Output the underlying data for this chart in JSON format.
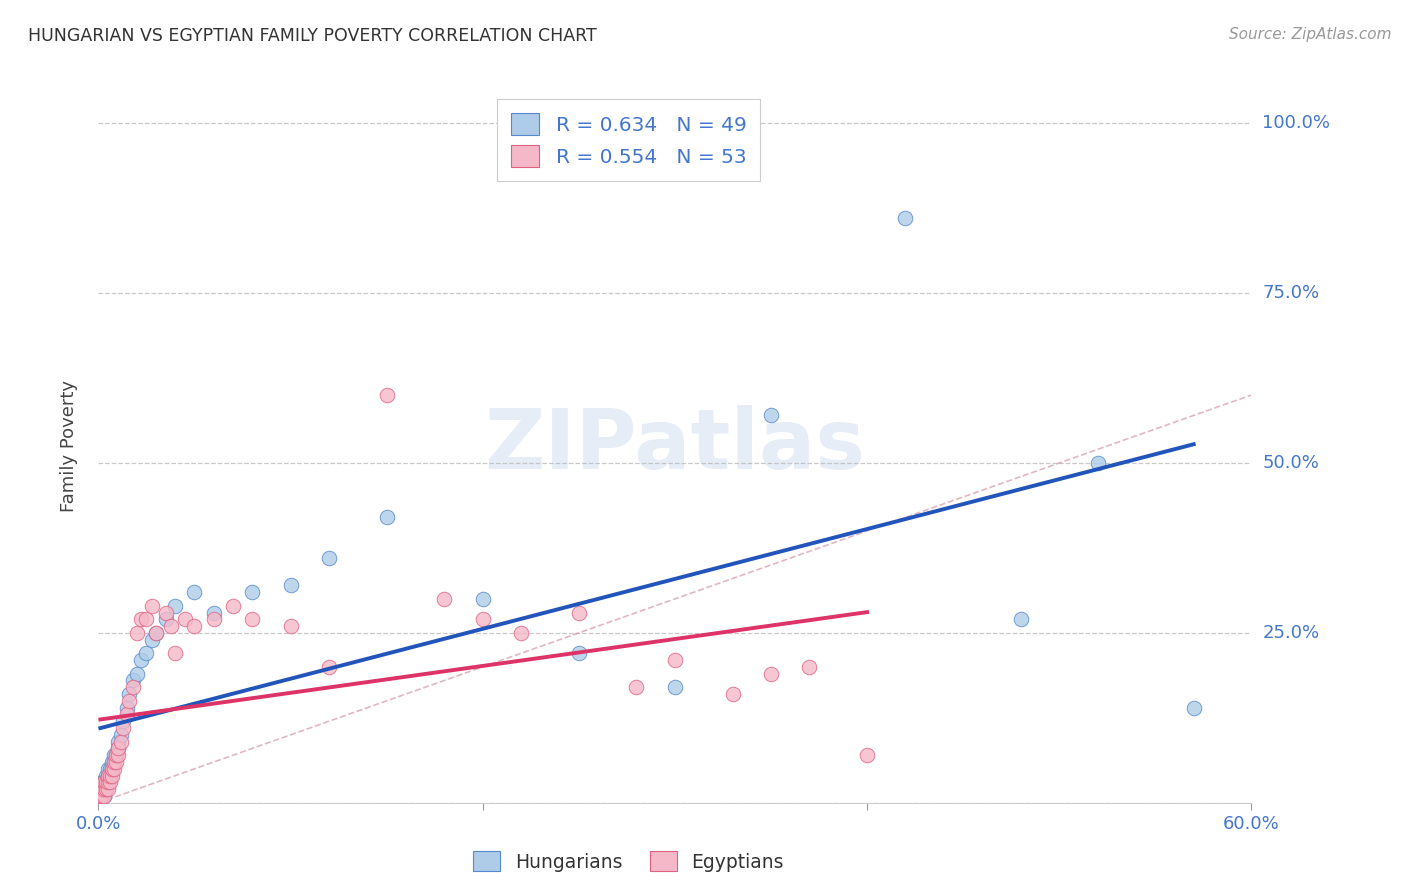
{
  "title": "HUNGARIAN VS EGYPTIAN FAMILY POVERTY CORRELATION CHART",
  "source": "Source: ZipAtlas.com",
  "ylabel": "Family Poverty",
  "xlim": [
    0.0,
    0.6
  ],
  "ylim": [
    0.0,
    1.05
  ],
  "xtick_positions": [
    0.0,
    0.2,
    0.4,
    0.6
  ],
  "xtick_labels": [
    "0.0%",
    "",
    "",
    "60.0%"
  ],
  "ytick_positions": [
    0.0,
    0.25,
    0.5,
    0.75,
    1.0
  ],
  "ytick_labels": [
    "",
    "25.0%",
    "50.0%",
    "75.0%",
    "100.0%"
  ],
  "grid_color": "#bbbbbb",
  "background_color": "#ffffff",
  "hungarian_color": "#aecce8",
  "egyptian_color": "#f5b8c8",
  "hungarian_edge_color": "#5588cc",
  "egyptian_edge_color": "#e06080",
  "hungarian_line_color": "#2255bb",
  "egyptian_line_color": "#dd3366",
  "label_color": "#4477cc",
  "watermark_text": "ZIPatlas",
  "legend_hun_R": "0.634",
  "legend_hun_N": "49",
  "legend_egy_R": "0.554",
  "legend_egy_N": "53",
  "hungarian_x": [
    0.001,
    0.001,
    0.002,
    0.002,
    0.002,
    0.003,
    0.003,
    0.003,
    0.004,
    0.004,
    0.004,
    0.005,
    0.005,
    0.005,
    0.006,
    0.006,
    0.007,
    0.007,
    0.008,
    0.008,
    0.009,
    0.01,
    0.01,
    0.012,
    0.013,
    0.015,
    0.016,
    0.018,
    0.02,
    0.022,
    0.025,
    0.028,
    0.03,
    0.035,
    0.04,
    0.05,
    0.06,
    0.08,
    0.1,
    0.12,
    0.15,
    0.2,
    0.25,
    0.3,
    0.35,
    0.42,
    0.48,
    0.52,
    0.57
  ],
  "hungarian_y": [
    0.005,
    0.01,
    0.01,
    0.02,
    0.03,
    0.01,
    0.02,
    0.03,
    0.02,
    0.03,
    0.04,
    0.03,
    0.04,
    0.05,
    0.04,
    0.05,
    0.05,
    0.06,
    0.06,
    0.07,
    0.07,
    0.08,
    0.09,
    0.1,
    0.12,
    0.14,
    0.16,
    0.18,
    0.19,
    0.21,
    0.22,
    0.24,
    0.25,
    0.27,
    0.29,
    0.31,
    0.28,
    0.31,
    0.32,
    0.36,
    0.42,
    0.3,
    0.22,
    0.17,
    0.57,
    0.86,
    0.27,
    0.5,
    0.14
  ],
  "egyptian_x": [
    0.001,
    0.001,
    0.002,
    0.002,
    0.003,
    0.003,
    0.003,
    0.004,
    0.004,
    0.005,
    0.005,
    0.005,
    0.006,
    0.006,
    0.007,
    0.007,
    0.008,
    0.008,
    0.009,
    0.009,
    0.01,
    0.01,
    0.012,
    0.013,
    0.015,
    0.016,
    0.018,
    0.02,
    0.022,
    0.025,
    0.028,
    0.03,
    0.035,
    0.038,
    0.04,
    0.045,
    0.05,
    0.06,
    0.07,
    0.08,
    0.1,
    0.12,
    0.15,
    0.18,
    0.2,
    0.22,
    0.25,
    0.28,
    0.3,
    0.33,
    0.35,
    0.37,
    0.4
  ],
  "egyptian_y": [
    0.005,
    0.01,
    0.01,
    0.02,
    0.01,
    0.02,
    0.03,
    0.02,
    0.03,
    0.02,
    0.03,
    0.04,
    0.03,
    0.04,
    0.04,
    0.05,
    0.05,
    0.06,
    0.06,
    0.07,
    0.07,
    0.08,
    0.09,
    0.11,
    0.13,
    0.15,
    0.17,
    0.25,
    0.27,
    0.27,
    0.29,
    0.25,
    0.28,
    0.26,
    0.22,
    0.27,
    0.26,
    0.27,
    0.29,
    0.27,
    0.26,
    0.2,
    0.6,
    0.3,
    0.27,
    0.25,
    0.28,
    0.17,
    0.21,
    0.16,
    0.19,
    0.2,
    0.07
  ]
}
